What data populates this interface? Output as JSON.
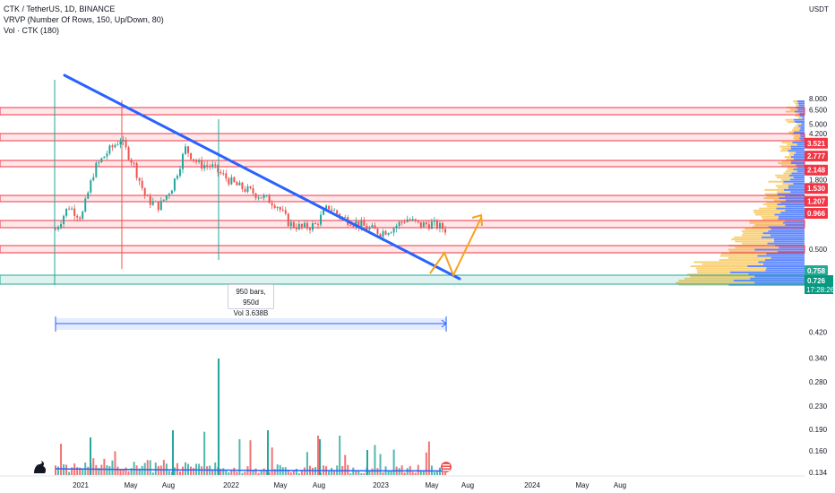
{
  "legend": {
    "symbol": "CTK / TetherUS, 1D, BINANCE",
    "vrvp": "VRVP (Number Of Rows, 150, Up/Down, 80)",
    "vol": "Vol · CTK (180)"
  },
  "price_axis": {
    "currency": "USDT",
    "ticks": [
      "8.000",
      "6.500",
      "5.000",
      "4.200",
      "1.800",
      "0.500",
      "0.420",
      "0.340",
      "0.280",
      "0.230",
      "0.190",
      "0.160",
      "0.134"
    ]
  },
  "time_axis": [
    "2021",
    "May",
    "Aug",
    "2022",
    "May",
    "Aug",
    "2023",
    "May",
    "Aug",
    "2024",
    "May",
    "Aug"
  ],
  "level_labels": [
    "3.521",
    "2.777",
    "2.148",
    "1.530",
    "1.207",
    "0.966"
  ],
  "current_price_labels": {
    "level": "0.758",
    "price": "0.726",
    "countdown": "17:28:26"
  },
  "measure": {
    "bars": "950 bars, 950d",
    "volume": "Vol 3.638B"
  },
  "colors": {
    "up": "#26a69a",
    "down": "#ef5350",
    "trendline": "#2962ff",
    "projection": "#f7a21b",
    "zone_red": "#f23645",
    "zone_green": "#22ab94",
    "vp_up": "#2962ff",
    "vp_down": "#f7c04a"
  },
  "chart_data": {
    "type": "candlestick",
    "title": "CTK / TetherUS, 1D, BINANCE",
    "y_scale": "log",
    "price_ticks": [
      8.0,
      6.5,
      5.0,
      4.2,
      1.8,
      0.5,
      0.42,
      0.34,
      0.28,
      0.23,
      0.19,
      0.16,
      0.134
    ],
    "horizontal_levels": [
      3.521,
      2.777,
      2.148,
      1.53,
      1.207,
      0.966,
      0.758,
      0.726
    ],
    "current_price": 0.726,
    "trendline": {
      "from": [
        "2020-11",
        4.95
      ],
      "to": [
        "2023-06",
        0.73
      ]
    },
    "projection": [
      [
        "2023-05",
        0.72
      ],
      [
        "2023-05",
        0.95
      ],
      [
        "2023-05",
        0.76
      ],
      [
        "2023-07",
        1.35
      ]
    ],
    "approx_close_path": [
      [
        "2020-11",
        0.72
      ],
      [
        "2020-12",
        1.1
      ],
      [
        "2021-01",
        0.9
      ],
      [
        "2021-02",
        2.2
      ],
      [
        "2021-03",
        3.0
      ],
      [
        "2021-04",
        3.8
      ],
      [
        "2021-05",
        2.4
      ],
      [
        "2021-06",
        1.25
      ],
      [
        "2021-07",
        1.1
      ],
      [
        "2021-08",
        1.6
      ],
      [
        "2021-09",
        3.2
      ],
      [
        "2021-10",
        2.4
      ],
      [
        "2021-11",
        2.3
      ],
      [
        "2021-12",
        1.9
      ],
      [
        "2022-01",
        1.6
      ],
      [
        "2022-02",
        1.45
      ],
      [
        "2022-03",
        1.3
      ],
      [
        "2022-04",
        1.15
      ],
      [
        "2022-05",
        0.8
      ],
      [
        "2022-06",
        0.74
      ],
      [
        "2022-07",
        0.78
      ],
      [
        "2022-08",
        1.1
      ],
      [
        "2022-09",
        0.9
      ],
      [
        "2022-10",
        0.82
      ],
      [
        "2022-11",
        0.74
      ],
      [
        "2022-12",
        0.68
      ],
      [
        "2023-01",
        0.74
      ],
      [
        "2023-02",
        0.88
      ],
      [
        "2023-03",
        0.78
      ],
      [
        "2023-04",
        0.8
      ],
      [
        "2023-05",
        0.72
      ]
    ]
  }
}
